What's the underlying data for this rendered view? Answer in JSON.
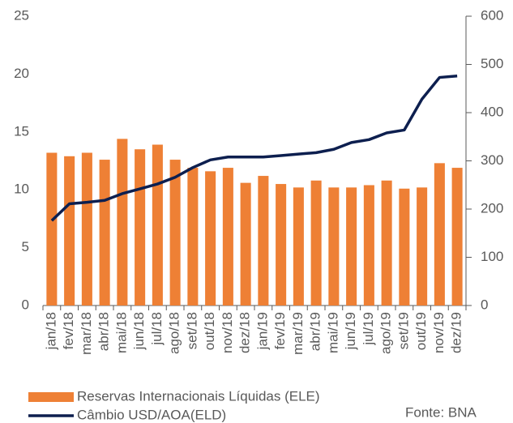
{
  "chart_data": {
    "type": "bar_line",
    "categories": [
      "jan/18",
      "fev/18",
      "mar/18",
      "abr/18",
      "mai/18",
      "jun/18",
      "jul/18",
      "ago/18",
      "set/18",
      "out/18",
      "nov/18",
      "dez/18",
      "jan/19",
      "fev/19",
      "mar/19",
      "abr/19",
      "mai/19",
      "jun/19",
      "jul/19",
      "ago/19",
      "set/19",
      "out/19",
      "nov/19",
      "dez/19"
    ],
    "series": [
      {
        "name": "Reservas Internacionais Líquidas (ELE)",
        "type": "bar",
        "color": "#ee8035",
        "axis": "y",
        "values": [
          13.2,
          12.9,
          13.2,
          12.6,
          14.4,
          13.5,
          13.9,
          12.6,
          11.9,
          11.6,
          11.9,
          10.6,
          11.2,
          10.5,
          10.2,
          10.8,
          10.2,
          10.2,
          10.4,
          10.8,
          10.1,
          10.2,
          12.3,
          11.9
        ]
      },
      {
        "name": "Câmbio USD/AOA(ELD)",
        "type": "line",
        "color": "#0d1f4f",
        "axis": "y2",
        "values": [
          176,
          211,
          214,
          218,
          232,
          242,
          252,
          266,
          286,
          302,
          308,
          308,
          308,
          311,
          314,
          317,
          324,
          338,
          344,
          358,
          364,
          428,
          473,
          476
        ]
      }
    ],
    "ylim": [
      0,
      25
    ],
    "yticks": [
      0,
      5,
      10,
      15,
      20,
      25
    ],
    "y2lim": [
      0,
      600
    ],
    "y2ticks": [
      0,
      100,
      200,
      300,
      400,
      500,
      600
    ],
    "source": "Fonte: BNA"
  }
}
